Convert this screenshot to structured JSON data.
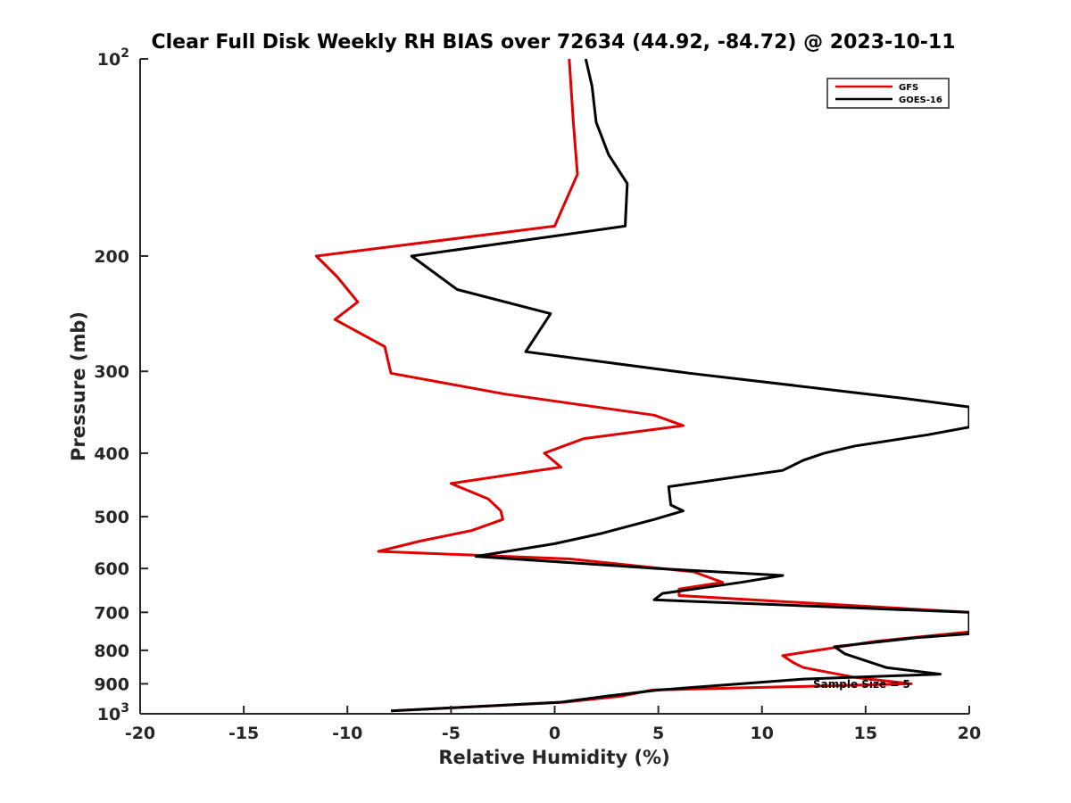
{
  "chart_data": {
    "type": "line",
    "title": "Clear Full Disk Weekly RH BIAS over 72634 (44.92, -84.72) @ 2023-10-11",
    "xlabel": "Relative Humidity (%)",
    "ylabel": "Pressure (mb)",
    "xlim": [
      -20,
      20
    ],
    "ylim": [
      100,
      1000
    ],
    "yscale": "log",
    "y_reversed": true,
    "grid": false,
    "x_ticks": [
      -20,
      -15,
      -10,
      -5,
      0,
      5,
      10,
      15,
      20
    ],
    "x_tick_labels": [
      "-20",
      "-15",
      "-10",
      "-5",
      "0",
      "5",
      "10",
      "15",
      "20"
    ],
    "y_ticks": [
      100,
      200,
      300,
      400,
      500,
      600,
      700,
      800,
      900,
      1000
    ],
    "y_tick_labels": [
      "10^2",
      "200",
      "300",
      "400",
      "500",
      "600",
      "700",
      "800",
      "900",
      "10^3"
    ],
    "y_tick_base": "10",
    "y_tick_exp_100": "2",
    "y_tick_exp_1000": "3",
    "legend": {
      "location": "top-right",
      "entries": [
        "GFS",
        "GOES-16"
      ]
    },
    "annotation": "Sample Size = 5",
    "series": [
      {
        "name": "GFS",
        "color": "#e00000",
        "points": [
          [
            0.7,
            100
          ],
          [
            0.9,
            125
          ],
          [
            1.1,
            150
          ],
          [
            0.0,
            180
          ],
          [
            -11.5,
            200
          ],
          [
            -10.5,
            215
          ],
          [
            -9.5,
            235
          ],
          [
            -10.6,
            250
          ],
          [
            -8.2,
            275
          ],
          [
            -7.9,
            302
          ],
          [
            -2.4,
            325
          ],
          [
            4.8,
            350
          ],
          [
            6.2,
            363
          ],
          [
            1.4,
            380
          ],
          [
            -0.5,
            400
          ],
          [
            0.3,
            420
          ],
          [
            -5.0,
            445
          ],
          [
            -3.2,
            470
          ],
          [
            -2.6,
            490
          ],
          [
            -2.5,
            505
          ],
          [
            -4.0,
            525
          ],
          [
            -6.5,
            545
          ],
          [
            -8.5,
            565
          ],
          [
            0.7,
            580
          ],
          [
            6.7,
            607
          ],
          [
            8.1,
            630
          ],
          [
            6.0,
            645
          ],
          [
            6.0,
            660
          ],
          [
            20.0,
            700
          ],
          [
            20.0,
            750
          ],
          [
            15.5,
            775
          ],
          [
            11.0,
            815
          ],
          [
            11.5,
            835
          ],
          [
            12.0,
            850
          ],
          [
            14.5,
            880
          ],
          [
            17.2,
            900
          ],
          [
            4.7,
            920
          ],
          [
            3.2,
            940
          ],
          [
            0.5,
            960
          ],
          [
            -7.9,
            990
          ]
        ]
      },
      {
        "name": "GOES-16",
        "color": "#000000",
        "points": [
          [
            1.5,
            100
          ],
          [
            1.8,
            110
          ],
          [
            2.0,
            125
          ],
          [
            2.6,
            140
          ],
          [
            3.5,
            155
          ],
          [
            3.4,
            180
          ],
          [
            -6.9,
            200
          ],
          [
            -4.7,
            225
          ],
          [
            -0.2,
            245
          ],
          [
            -1.4,
            280
          ],
          [
            6.5,
            302
          ],
          [
            16.9,
            330
          ],
          [
            20.0,
            340
          ],
          [
            20.0,
            365
          ],
          [
            18.0,
            375
          ],
          [
            14.5,
            390
          ],
          [
            13.0,
            400
          ],
          [
            12.0,
            410
          ],
          [
            11.0,
            425
          ],
          [
            5.5,
            450
          ],
          [
            5.6,
            480
          ],
          [
            6.2,
            490
          ],
          [
            4.8,
            505
          ],
          [
            2.3,
            530
          ],
          [
            0.0,
            550
          ],
          [
            -3.8,
            575
          ],
          [
            5.0,
            600
          ],
          [
            11.0,
            615
          ],
          [
            9.0,
            630
          ],
          [
            5.2,
            655
          ],
          [
            4.8,
            670
          ],
          [
            20.0,
            700
          ],
          [
            20.0,
            755
          ],
          [
            17.5,
            765
          ],
          [
            13.5,
            790
          ],
          [
            14.0,
            810
          ],
          [
            16.0,
            850
          ],
          [
            18.6,
            870
          ],
          [
            12.0,
            885
          ],
          [
            5.0,
            920
          ],
          [
            2.5,
            940
          ],
          [
            0.3,
            960
          ],
          [
            -7.9,
            990
          ]
        ]
      }
    ]
  }
}
